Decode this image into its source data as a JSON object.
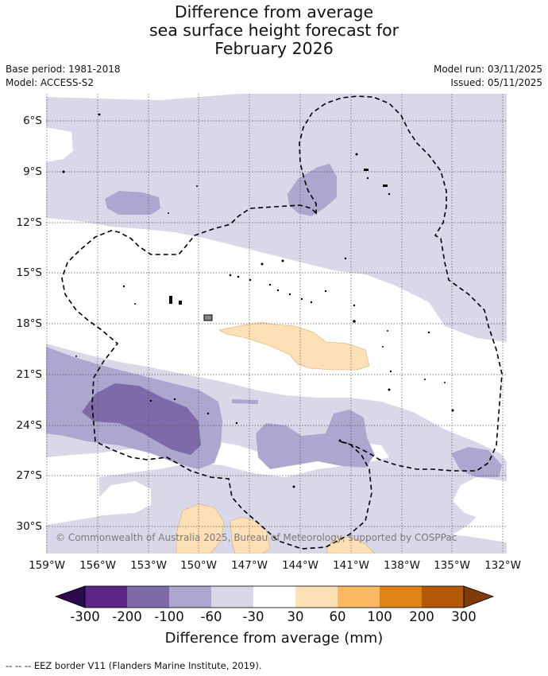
{
  "title": {
    "line1": "Difference from average",
    "line2": "sea surface height forecast for",
    "line3": "February 2026"
  },
  "meta": {
    "base_period": "Base period: 1981-2018",
    "model": "Model: ACCESS-S2",
    "model_run": "Model run: 03/11/2025",
    "issued": "Issued: 05/11/2025"
  },
  "latitudes": [
    "6°S",
    "9°S",
    "12°S",
    "15°S",
    "18°S",
    "21°S",
    "24°S",
    "27°S",
    "30°S"
  ],
  "longitudes": [
    "159°W",
    "156°W",
    "153°W",
    "150°W",
    "147°W",
    "144°W",
    "141°W",
    "138°W",
    "135°W",
    "132°W"
  ],
  "copyright": "© Commonwealth of Australia 2025, Bureau of Meteorology, supported by COSPPac",
  "colorbar": {
    "title": "Difference from average (mm)",
    "ticks": [
      "-300",
      "-200",
      "-100",
      "-60",
      "-30",
      "30",
      "60",
      "100",
      "200",
      "300"
    ],
    "colors": {
      "below_min": "#2d0a4e",
      "b_300_200": "#5a2585",
      "b_200_100": "#7d6ba9",
      "b_100_60": "#ada6cf",
      "b_60_30": "#d8d8e9",
      "b_30_30": "#ffffff",
      "b_30_60": "#fee0b6",
      "b_60_100": "#fdb863",
      "b_100_200": "#e08214",
      "b_200_300": "#b35806",
      "above_max": "#7f3b08"
    }
  },
  "footnote": "--  --  -- EEZ border V11 (Flanders Marine Institute, 2019)."
}
